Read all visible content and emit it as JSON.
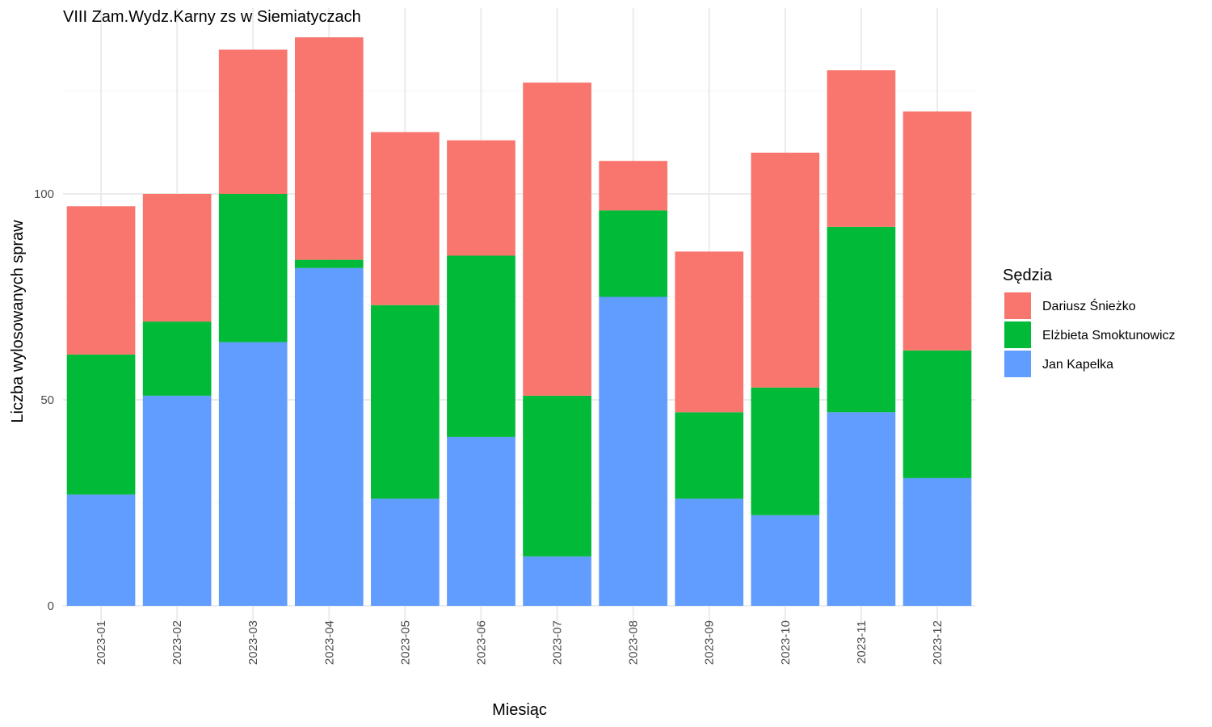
{
  "chart_data": {
    "type": "bar",
    "stacked": true,
    "title": "VIII Zam.Wydz.Karny zs w Siemiatyczach",
    "xlabel": "Miesiąc",
    "ylabel": "Liczba wylosowanych spraw",
    "ylim": [
      0,
      140
    ],
    "yticks": [
      0,
      50,
      100
    ],
    "grid": true,
    "legend": {
      "title": "Sędzia",
      "position": "right"
    },
    "categories": [
      "2023-01",
      "2023-02",
      "2023-03",
      "2023-04",
      "2023-05",
      "2023-06",
      "2023-07",
      "2023-08",
      "2023-09",
      "2023-10",
      "2023-11",
      "2023-12"
    ],
    "series": [
      {
        "name": "Jan Kapelka",
        "color": "#619CFF",
        "values": [
          27,
          51,
          64,
          82,
          26,
          41,
          12,
          75,
          26,
          22,
          47,
          31
        ]
      },
      {
        "name": "Elżbieta Smoktunowicz",
        "color": "#00BA38",
        "values": [
          34,
          18,
          36,
          2,
          47,
          44,
          39,
          21,
          21,
          31,
          45,
          31
        ]
      },
      {
        "name": "Dariusz Śnieżko",
        "color": "#F8766D",
        "values": [
          36,
          31,
          35,
          54,
          42,
          28,
          76,
          12,
          39,
          57,
          38,
          58
        ]
      }
    ],
    "legend_order": [
      "Dariusz Śnieżko",
      "Elżbieta Smoktunowicz",
      "Jan Kapelka"
    ]
  }
}
